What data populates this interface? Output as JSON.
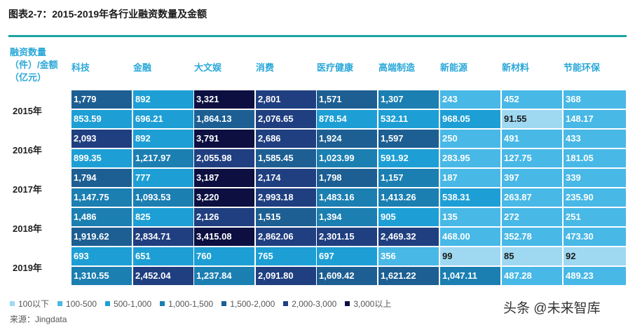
{
  "title": "图表2-7：2015-2019年各行业融资数量及金额",
  "row_header_label": "融资数量（件）/金额（亿元）",
  "row_header_lines": [
    "融资数量",
    "（件）/金额",
    "（亿元）"
  ],
  "colors": {
    "accent_rule": "#1aa3a1",
    "header_text": "#2aa8d8",
    "text_dark": "#1b1b1b",
    "text_light": "#ffffff"
  },
  "chart_data": {
    "type": "table",
    "title": "图表2-7：2015-2019年各行业融资数量及金额",
    "categories": [
      "科技",
      "金融",
      "大文娱",
      "消费",
      "医疗健康",
      "高端制造",
      "新能源",
      "新材料",
      "节能环保"
    ],
    "rows": [
      {
        "year": "2015年",
        "count": [
          "1,779",
          "892",
          "3,321",
          "2,801",
          "1,571",
          "1,307",
          "243",
          "452",
          "368"
        ],
        "amount": [
          "853.59",
          "696.21",
          "1,864.13",
          "2,076.65",
          "878.54",
          "532.11",
          "968.05",
          "91.55",
          "148.17"
        ]
      },
      {
        "year": "2016年",
        "count": [
          "2,093",
          "892",
          "3,791",
          "2,686",
          "1,924",
          "1,597",
          "250",
          "491",
          "433"
        ],
        "amount": [
          "899.35",
          "1,217.97",
          "2,055.98",
          "1,585.45",
          "1,023.99",
          "591.92",
          "283.95",
          "127.75",
          "181.05"
        ]
      },
      {
        "year": "2017年",
        "count": [
          "1,794",
          "777",
          "3,187",
          "2,174",
          "1,798",
          "1,157",
          "187",
          "397",
          "339"
        ],
        "amount": [
          "1,147.75",
          "1,093.53",
          "3,220",
          "2,993.18",
          "1,483.16",
          "1,413.26",
          "538.31",
          "263.87",
          "235.90"
        ]
      },
      {
        "year": "2018年",
        "count": [
          "1,486",
          "825",
          "2,126",
          "1,515",
          "1,394",
          "905",
          "135",
          "272",
          "251"
        ],
        "amount": [
          "1,919.62",
          "2,834.71",
          "3,415.08",
          "2,862.06",
          "2,301.15",
          "2,469.32",
          "468.00",
          "352.78",
          "473.30"
        ]
      },
      {
        "year": "2019年",
        "count": [
          "693",
          "651",
          "760",
          "765",
          "697",
          "356",
          "99",
          "85",
          "92"
        ],
        "amount": [
          "1,310.55",
          "2,452.04",
          "1,237.84",
          "2,091.80",
          "1,609.42",
          "1,621.22",
          "1,047.11",
          "487.28",
          "489.23"
        ]
      }
    ],
    "legend": [
      {
        "label": "100以下",
        "max": 100,
        "color": "#9fd8f1",
        "text": "dark"
      },
      {
        "label": "100-500",
        "max": 500,
        "color": "#48b8e6",
        "text": "light"
      },
      {
        "label": "500-1,000",
        "max": 1000,
        "color": "#1d9fd5",
        "text": "light"
      },
      {
        "label": "1,000-1,500",
        "max": 1500,
        "color": "#1b7fb2",
        "text": "light"
      },
      {
        "label": "1,500-2,000",
        "max": 2000,
        "color": "#1d5f93",
        "text": "light"
      },
      {
        "label": "2,000-3,000",
        "max": 3000,
        "color": "#203f80",
        "text": "light"
      },
      {
        "label": "3,000以上",
        "max": null,
        "color": "#0c0f40",
        "text": "light"
      }
    ]
  },
  "source": "来源：Jingdata",
  "watermark": "头条 @未来智库"
}
